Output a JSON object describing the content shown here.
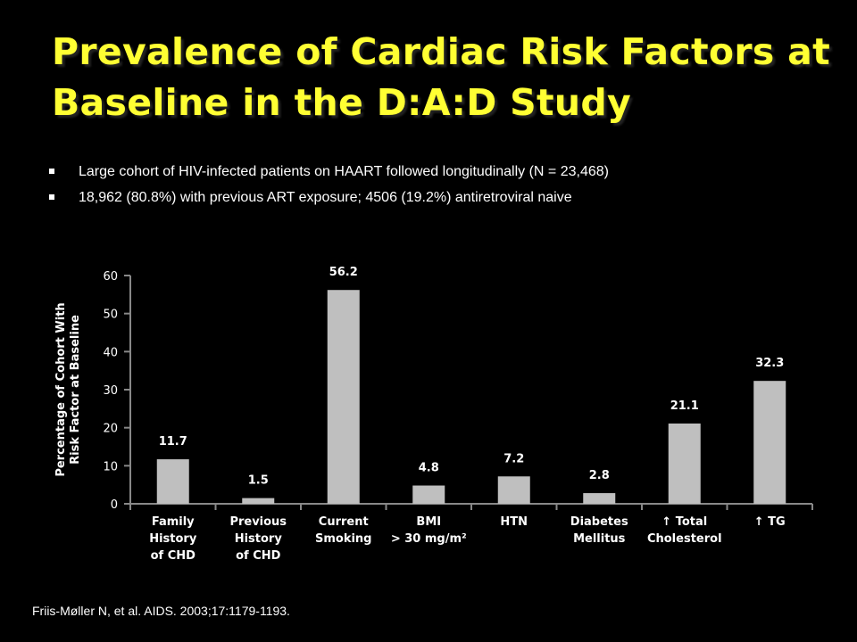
{
  "slide": {
    "title_lines": [
      "Prevalence of Cardiac Risk Factors at",
      "Baseline in the D:A:D Study"
    ],
    "bullets": [
      "Large cohort of HIV-infected patients on HAART followed longitudinally (N = 23,468)",
      "18,962 (80.8%) with previous ART exposure; 4506 (19.2%) antiretroviral naive"
    ],
    "citation": "Friis-Møller N, et al. AIDS. 2003;17:1179-1193.",
    "colors": {
      "title": "#ffff33",
      "background": "#000000",
      "bars": "#bfbfbf",
      "text": "#ffffff"
    }
  },
  "chart_data": {
    "type": "bar",
    "title": "",
    "xlabel": "",
    "ylabel": "Percentage of Cohort With Risk Factor at Baseline",
    "ylabel_lines": [
      "Percentage of Cohort With",
      "Risk Factor at Baseline"
    ],
    "ylim": [
      0,
      60
    ],
    "yticks": [
      0,
      10,
      20,
      30,
      40,
      50,
      60
    ],
    "grid": false,
    "legend": "none",
    "categories": [
      [
        "Family",
        "History",
        "of CHD"
      ],
      [
        "Previous",
        "History",
        "of CHD"
      ],
      [
        "Current",
        "Smoking"
      ],
      [
        "BMI",
        "> 30 mg/m²"
      ],
      [
        "HTN"
      ],
      [
        "Diabetes",
        "Mellitus"
      ],
      [
        "↑ Total",
        "Cholesterol"
      ],
      [
        "↑ TG"
      ]
    ],
    "values": [
      11.7,
      1.5,
      56.2,
      4.8,
      7.2,
      2.8,
      21.1,
      32.3
    ],
    "value_labels": [
      "11.7",
      "1.5",
      "56.2",
      "4.8",
      "7.2",
      "2.8",
      "21.1",
      "32.3"
    ]
  }
}
